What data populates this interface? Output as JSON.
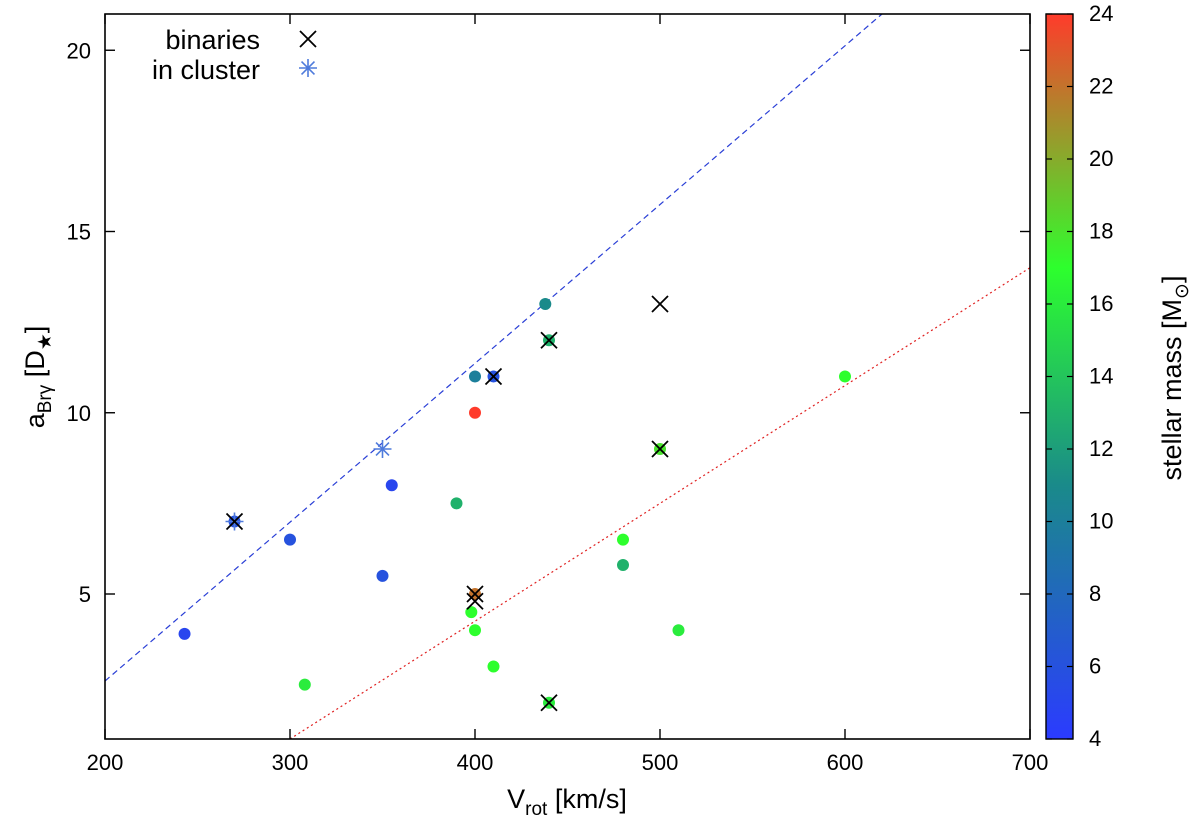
{
  "chart_data": {
    "type": "scatter",
    "xlabel": {
      "main": "V",
      "sub": "rot",
      "rest": " [km/s]"
    },
    "ylabel": {
      "main": "a",
      "sub": "Brγ",
      "rest": " [D",
      "sub2": "★",
      "close": "]"
    },
    "xlim": [
      200,
      700
    ],
    "ylim": [
      1,
      21
    ],
    "xticks": [
      200,
      300,
      400,
      500,
      600,
      700
    ],
    "yticks": [
      5,
      10,
      15,
      20
    ],
    "colorbar": {
      "label": {
        "main": "stellar mass [M",
        "sub": "⊙",
        "close": "]"
      },
      "range": [
        4,
        24
      ],
      "ticks": [
        4,
        6,
        8,
        10,
        12,
        14,
        16,
        18,
        20,
        22,
        24
      ],
      "stops": [
        {
          "value": 4,
          "color": "#2b3bff"
        },
        {
          "value": 11,
          "color": "#1a8a8a"
        },
        {
          "value": 17,
          "color": "#2dff2d"
        },
        {
          "value": 24,
          "color": "#ff3b2b"
        }
      ]
    },
    "legend": {
      "position": "top-left",
      "entries": [
        {
          "label": "binaries",
          "marker": "cross",
          "color": "#000000"
        },
        {
          "label": "in cluster",
          "marker": "asterisk",
          "color": "#4f7bdc"
        }
      ]
    },
    "lines": [
      {
        "name": "upper-fit",
        "style": "dashed",
        "color": "#2a3fd6",
        "points": [
          [
            200,
            2.6
          ],
          [
            620,
            21
          ]
        ]
      },
      {
        "name": "lower-fit",
        "style": "dotted",
        "color": "#e02020",
        "points": [
          [
            300,
            1.0
          ],
          [
            700,
            14.0
          ]
        ]
      }
    ],
    "points": [
      {
        "x": 243,
        "y": 3.9,
        "mass": 5.0
      },
      {
        "x": 270,
        "y": 7.0,
        "mass": 6.0,
        "marker": "asterisk"
      },
      {
        "x": 270,
        "y": 7.0,
        "marker": "cross"
      },
      {
        "x": 300,
        "y": 6.5,
        "mass": 6.0
      },
      {
        "x": 308,
        "y": 2.5,
        "mass": 16.0
      },
      {
        "x": 350,
        "y": 5.5,
        "mass": 6.0
      },
      {
        "x": 350,
        "y": 9.0,
        "marker": "asterisk"
      },
      {
        "x": 355,
        "y": 8.0,
        "mass": 5.0
      },
      {
        "x": 390,
        "y": 7.5,
        "mass": 13.0
      },
      {
        "x": 398,
        "y": 4.5,
        "mass": 17.0
      },
      {
        "x": 400,
        "y": 11.0,
        "mass": 10.0
      },
      {
        "x": 400,
        "y": 10.0,
        "mass": 24.0
      },
      {
        "x": 400,
        "y": 5.0,
        "mass": 22.0
      },
      {
        "x": 400,
        "y": 4.0,
        "mass": 17.0
      },
      {
        "x": 400,
        "y": 5.0,
        "marker": "cross"
      },
      {
        "x": 400,
        "y": 4.8,
        "marker": "cross"
      },
      {
        "x": 410,
        "y": 11.0,
        "mass": 6.0
      },
      {
        "x": 410,
        "y": 11.0,
        "marker": "cross"
      },
      {
        "x": 410,
        "y": 3.0,
        "mass": 17.0
      },
      {
        "x": 438,
        "y": 13.0,
        "mass": 11.0
      },
      {
        "x": 440,
        "y": 12.0,
        "mass": 13.0
      },
      {
        "x": 440,
        "y": 12.0,
        "marker": "cross"
      },
      {
        "x": 440,
        "y": 2.0,
        "mass": 16.0
      },
      {
        "x": 440,
        "y": 2.0,
        "marker": "cross"
      },
      {
        "x": 480,
        "y": 6.5,
        "mass": 17.0
      },
      {
        "x": 480,
        "y": 5.8,
        "mass": 13.0
      },
      {
        "x": 500,
        "y": 9.0,
        "mass": 18.0
      },
      {
        "x": 500,
        "y": 9.0,
        "marker": "cross"
      },
      {
        "x": 500,
        "y": 13.0,
        "marker": "cross"
      },
      {
        "x": 510,
        "y": 4.0,
        "mass": 16.0
      },
      {
        "x": 600,
        "y": 11.0,
        "mass": 17.0
      }
    ]
  }
}
